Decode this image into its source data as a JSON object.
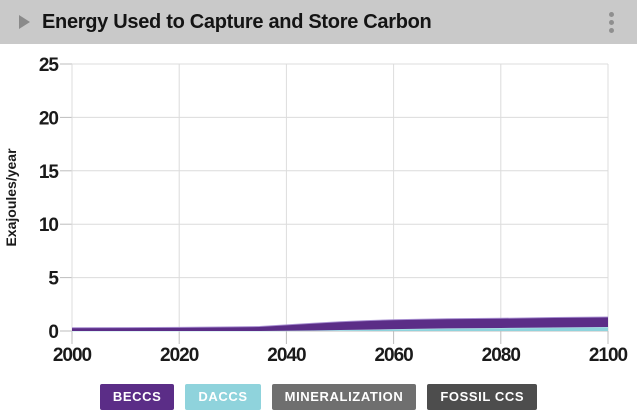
{
  "header": {
    "title": "Energy Used to Capture and Store Carbon",
    "collapse_icon": "caret-right-icon",
    "menu_icon": "kebab-vertical-icon",
    "background": "#c9c9c9"
  },
  "colors": {
    "plot_background": "#ffffff",
    "gridline": "#dcdcdc",
    "axis_tick": "#bdbdbd",
    "tick_label": "#1a1a1a",
    "beccs": "#5b2d87",
    "beccs_edge": "#a58cd0",
    "daccs": "#8fd3dc",
    "daccs_edge": "#c2e8ee",
    "mineralization": "#6f6f6f",
    "fossil_ccs": "#4d4d4d"
  },
  "chart_data": {
    "type": "area",
    "stacked": true,
    "title": "Energy Used to Capture and Store Carbon",
    "xlabel": "",
    "ylabel": "Exajoules/year",
    "xlim": [
      2000,
      2100
    ],
    "ylim": [
      0,
      25
    ],
    "x_ticks": [
      2000,
      2020,
      2040,
      2060,
      2080,
      2100
    ],
    "y_ticks": [
      0,
      5,
      10,
      15,
      20,
      25
    ],
    "grid": true,
    "legend_position": "bottom",
    "x": [
      2000,
      2010,
      2020,
      2030,
      2035,
      2040,
      2045,
      2050,
      2055,
      2060,
      2070,
      2080,
      2090,
      2100
    ],
    "series": [
      {
        "name": "BECCS",
        "color": "#5b2d87",
        "values": [
          0.3,
          0.32,
          0.34,
          0.38,
          0.42,
          0.55,
          0.68,
          0.78,
          0.84,
          0.88,
          0.9,
          0.91,
          0.93,
          0.94
        ]
      },
      {
        "name": "DACCS",
        "color": "#8fd3dc",
        "values": [
          0,
          0,
          0,
          0,
          0,
          0.02,
          0.05,
          0.09,
          0.13,
          0.18,
          0.24,
          0.28,
          0.33,
          0.37
        ]
      },
      {
        "name": "MINERALIZATION",
        "color": "#6f6f6f",
        "values": [
          0,
          0,
          0,
          0,
          0,
          0,
          0,
          0,
          0,
          0,
          0,
          0,
          0,
          0
        ]
      },
      {
        "name": "FOSSIL CCS",
        "color": "#4d4d4d",
        "values": [
          0,
          0,
          0,
          0,
          0,
          0,
          0,
          0,
          0,
          0,
          0,
          0,
          0,
          0
        ]
      }
    ],
    "stack_order_bottom_to_top": [
      "FOSSIL CCS",
      "MINERALIZATION",
      "DACCS",
      "BECCS"
    ]
  },
  "legend": {
    "items": [
      {
        "label": "BECCS",
        "color": "#5b2d87"
      },
      {
        "label": "DACCS",
        "color": "#8fd3dc"
      },
      {
        "label": "MINERALIZATION",
        "color": "#6f6f6f"
      },
      {
        "label": "FOSSIL CCS",
        "color": "#4d4d4d"
      }
    ]
  }
}
